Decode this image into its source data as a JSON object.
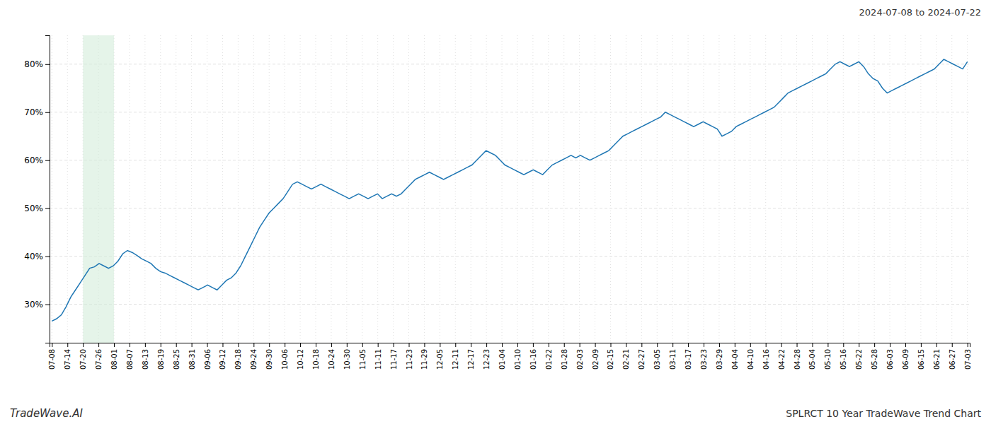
{
  "chart_data": {
    "type": "line",
    "title": "SPLRCT 10 Year TradeWave Trend Chart",
    "subtitle": "2024-07-08 to 2024-07-22",
    "annotations": [
      {
        "text": "TradeWave.AI"
      }
    ],
    "color": "#1f77b4",
    "grid": true,
    "bands": [
      {
        "x": [
          6.576271,
          13.152542
        ],
        "color": "#d4edda"
      }
    ],
    "xlim": [
      -0.5,
      194.5
    ],
    "xticks": [
      {
        "value": 0,
        "label": "07-08"
      },
      {
        "value": 3.288136,
        "label": "07-14"
      },
      {
        "value": 6.576271,
        "label": "07-20"
      },
      {
        "value": 9.864407,
        "label": "07-26"
      },
      {
        "value": 13.152542,
        "label": "08-01"
      },
      {
        "value": 16.440678,
        "label": "08-07"
      },
      {
        "value": 19.728814,
        "label": "08-13"
      },
      {
        "value": 23.016949,
        "label": "08-19"
      },
      {
        "value": 26.305085,
        "label": "08-25"
      },
      {
        "value": 29.59322,
        "label": "08-31"
      },
      {
        "value": 32.881356,
        "label": "09-06"
      },
      {
        "value": 36.169492,
        "label": "09-12"
      },
      {
        "value": 39.457627,
        "label": "09-18"
      },
      {
        "value": 42.745763,
        "label": "09-24"
      },
      {
        "value": 46.033898,
        "label": "09-30"
      },
      {
        "value": 49.322034,
        "label": "10-06"
      },
      {
        "value": 52.610169,
        "label": "10-12"
      },
      {
        "value": 55.898305,
        "label": "10-18"
      },
      {
        "value": 59.186441,
        "label": "10-24"
      },
      {
        "value": 62.474576,
        "label": "10-30"
      },
      {
        "value": 65.762712,
        "label": "11-05"
      },
      {
        "value": 69.050847,
        "label": "11-11"
      },
      {
        "value": 72.338983,
        "label": "11-17"
      },
      {
        "value": 75.627119,
        "label": "11-23"
      },
      {
        "value": 78.915254,
        "label": "11-29"
      },
      {
        "value": 82.20339,
        "label": "12-05"
      },
      {
        "value": 85.491525,
        "label": "12-11"
      },
      {
        "value": 88.779661,
        "label": "12-17"
      },
      {
        "value": 92.067797,
        "label": "12-23"
      },
      {
        "value": 95.355932,
        "label": "01-04"
      },
      {
        "value": 98.644068,
        "label": "01-10"
      },
      {
        "value": 101.932203,
        "label": "01-16"
      },
      {
        "value": 105.220339,
        "label": "01-22"
      },
      {
        "value": 108.508475,
        "label": "01-28"
      },
      {
        "value": 111.79661,
        "label": "02-03"
      },
      {
        "value": 115.084746,
        "label": "02-09"
      },
      {
        "value": 118.372881,
        "label": "02-15"
      },
      {
        "value": 121.661017,
        "label": "02-21"
      },
      {
        "value": 124.949153,
        "label": "02-27"
      },
      {
        "value": 128.237288,
        "label": "03-05"
      },
      {
        "value": 131.525424,
        "label": "03-11"
      },
      {
        "value": 134.813559,
        "label": "03-17"
      },
      {
        "value": 138.101695,
        "label": "03-23"
      },
      {
        "value": 141.389831,
        "label": "03-29"
      },
      {
        "value": 144.677966,
        "label": "04-04"
      },
      {
        "value": 147.966102,
        "label": "04-10"
      },
      {
        "value": 151.254237,
        "label": "04-16"
      },
      {
        "value": 154.542373,
        "label": "04-22"
      },
      {
        "value": 157.830508,
        "label": "04-28"
      },
      {
        "value": 161.118644,
        "label": "05-04"
      },
      {
        "value": 164.40678,
        "label": "05-10"
      },
      {
        "value": 167.694915,
        "label": "05-16"
      },
      {
        "value": 170.983051,
        "label": "05-22"
      },
      {
        "value": 174.271186,
        "label": "05-28"
      },
      {
        "value": 177.559322,
        "label": "06-03"
      },
      {
        "value": 180.847458,
        "label": "06-09"
      },
      {
        "value": 184.135593,
        "label": "06-15"
      },
      {
        "value": 187.423729,
        "label": "06-21"
      },
      {
        "value": 190.711864,
        "label": "06-27"
      },
      {
        "value": 194,
        "label": "07-03"
      }
    ],
    "ylim": [
      22,
      86
    ],
    "yticks": [
      {
        "value": 30,
        "label": "30%"
      },
      {
        "value": 40,
        "label": "40%"
      },
      {
        "value": 50,
        "label": "50%"
      },
      {
        "value": 60,
        "label": "60%"
      },
      {
        "value": 70,
        "label": "70%"
      },
      {
        "value": 80,
        "label": "80%"
      }
    ],
    "values": [
      26.5,
      27.0,
      27.8,
      29.5,
      31.5,
      33.0,
      34.5,
      36.0,
      37.5,
      37.8,
      38.5,
      38.0,
      37.5,
      38.0,
      39.0,
      40.5,
      41.2,
      40.8,
      40.2,
      39.5,
      39.0,
      38.5,
      37.5,
      36.8,
      36.5,
      36.0,
      35.5,
      35.0,
      34.5,
      34.0,
      33.5,
      33.0,
      33.5,
      34.0,
      33.5,
      33.0,
      34.0,
      35.0,
      35.5,
      36.5,
      38.0,
      40.0,
      42.0,
      44.0,
      46.0,
      47.5,
      49.0,
      50.0,
      51.0,
      52.0,
      53.5,
      55.0,
      55.5,
      55.0,
      54.5,
      54.0,
      54.5,
      55.0,
      54.5,
      54.0,
      53.5,
      53.0,
      52.5,
      52.0,
      52.5,
      53.0,
      52.5,
      52.0,
      52.5,
      53.0,
      52.0,
      52.5,
      53.0,
      52.5,
      53.0,
      54.0,
      55.0,
      56.0,
      56.5,
      57.0,
      57.5,
      57.0,
      56.5,
      56.0,
      56.5,
      57.0,
      57.5,
      58.0,
      58.5,
      59.0,
      60.0,
      61.0,
      62.0,
      61.5,
      61.0,
      60.0,
      59.0,
      58.5,
      58.0,
      57.5,
      57.0,
      57.5,
      58.0,
      57.5,
      57.0,
      58.0,
      59.0,
      59.5,
      60.0,
      60.5,
      61.0,
      60.5,
      61.0,
      60.5,
      60.0,
      60.5,
      61.0,
      61.5,
      62.0,
      63.0,
      64.0,
      65.0,
      65.5,
      66.0,
      66.5,
      67.0,
      67.5,
      68.0,
      68.5,
      69.0,
      70.0,
      69.5,
      69.0,
      68.5,
      68.0,
      67.5,
      67.0,
      67.5,
      68.0,
      67.5,
      67.0,
      66.5,
      65.0,
      65.5,
      66.0,
      67.0,
      67.5,
      68.0,
      68.5,
      69.0,
      69.5,
      70.0,
      70.5,
      71.0,
      72.0,
      73.0,
      74.0,
      74.5,
      75.0,
      75.5,
      76.0,
      76.5,
      77.0,
      77.5,
      78.0,
      79.0,
      80.0,
      80.5,
      80.0,
      79.5,
      80.0,
      80.5,
      79.5,
      78.0,
      77.0,
      76.5,
      75.0,
      74.0,
      74.5,
      75.0,
      75.5,
      76.0,
      76.5,
      77.0,
      77.5,
      78.0,
      78.5,
      79.0,
      80.0,
      81.0,
      80.5,
      80.0,
      79.5,
      79.0,
      80.5
    ]
  }
}
